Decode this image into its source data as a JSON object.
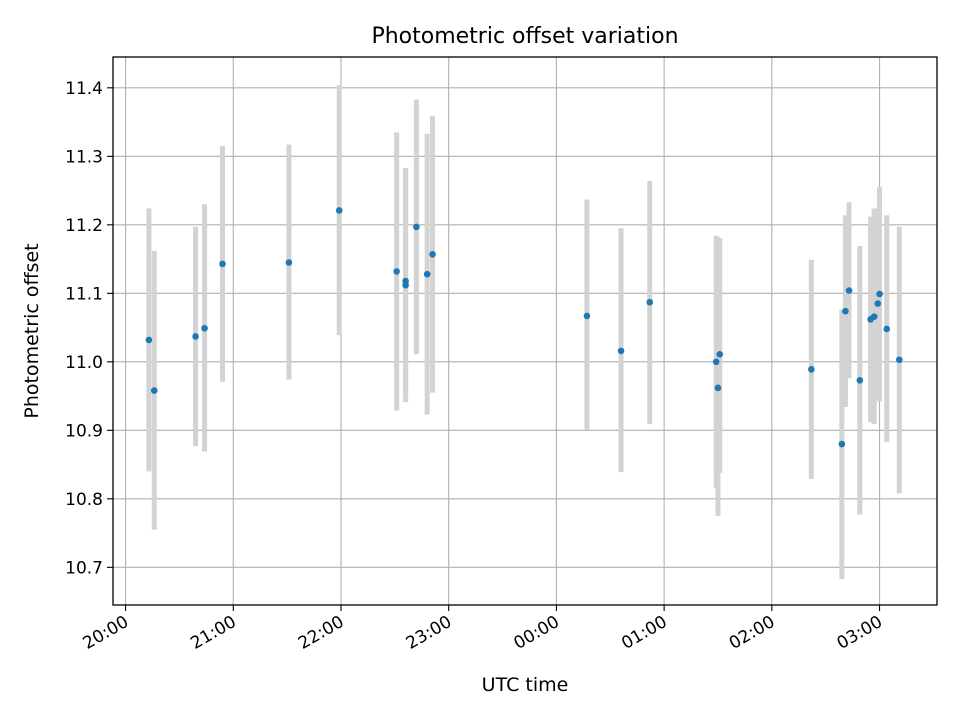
{
  "chart_data": {
    "type": "scatter",
    "title": "Photometric offset variation",
    "xlabel": "UTC time",
    "ylabel": "Photometric offset",
    "x_axis_kind": "time",
    "xlim": [
      "19:53",
      "03:32"
    ],
    "ylim": [
      10.645,
      11.445
    ],
    "xticks": [
      "20:00",
      "21:00",
      "22:00",
      "23:00",
      "00:00",
      "01:00",
      "02:00",
      "03:00"
    ],
    "yticks": [
      "10.7",
      "10.8",
      "10.9",
      "11.0",
      "11.1",
      "11.2",
      "11.3",
      "11.4"
    ],
    "grid": true,
    "colors": {
      "point": "#1f77b4",
      "errorbar": "#d3d3d3",
      "grid": "#b0b0b0"
    },
    "points": [
      {
        "x": "20:13",
        "y": 11.032,
        "yerr_low": 10.84,
        "yerr_high": 11.224
      },
      {
        "x": "20:16",
        "y": 10.958,
        "yerr_low": 10.755,
        "yerr_high": 11.162
      },
      {
        "x": "20:39",
        "y": 11.037,
        "yerr_low": 10.877,
        "yerr_high": 11.197
      },
      {
        "x": "20:44",
        "y": 11.049,
        "yerr_low": 10.869,
        "yerr_high": 11.23
      },
      {
        "x": "20:54",
        "y": 11.143,
        "yerr_low": 10.971,
        "yerr_high": 11.315
      },
      {
        "x": "21:31",
        "y": 11.145,
        "yerr_low": 10.974,
        "yerr_high": 11.317
      },
      {
        "x": "21:59",
        "y": 11.221,
        "yerr_low": 11.039,
        "yerr_high": 11.404
      },
      {
        "x": "22:31",
        "y": 11.132,
        "yerr_low": 10.929,
        "yerr_high": 11.335
      },
      {
        "x": "22:36",
        "y": 11.118,
        "yerr_low": 10.955,
        "yerr_high": 11.281
      },
      {
        "x": "22:36",
        "y": 11.112,
        "yerr_low": 10.941,
        "yerr_high": 11.283
      },
      {
        "x": "22:42",
        "y": 11.197,
        "yerr_low": 11.011,
        "yerr_high": 11.383
      },
      {
        "x": "22:48",
        "y": 11.128,
        "yerr_low": 10.923,
        "yerr_high": 11.333
      },
      {
        "x": "22:51",
        "y": 11.157,
        "yerr_low": 10.955,
        "yerr_high": 11.359
      },
      {
        "x": "00:17",
        "y": 11.067,
        "yerr_low": 10.901,
        "yerr_high": 11.237
      },
      {
        "x": "00:36",
        "y": 11.016,
        "yerr_low": 10.839,
        "yerr_high": 11.195
      },
      {
        "x": "00:52",
        "y": 11.087,
        "yerr_low": 10.909,
        "yerr_high": 11.264
      },
      {
        "x": "01:29",
        "y": 11.0,
        "yerr_low": 10.816,
        "yerr_high": 11.184
      },
      {
        "x": "01:30",
        "y": 10.962,
        "yerr_low": 10.775,
        "yerr_high": 11.182
      },
      {
        "x": "01:31",
        "y": 11.011,
        "yerr_low": 10.838,
        "yerr_high": 11.18
      },
      {
        "x": "02:22",
        "y": 10.989,
        "yerr_low": 10.829,
        "yerr_high": 11.149
      },
      {
        "x": "02:39",
        "y": 10.88,
        "yerr_low": 10.683,
        "yerr_high": 11.076
      },
      {
        "x": "02:41",
        "y": 11.074,
        "yerr_low": 10.934,
        "yerr_high": 11.214
      },
      {
        "x": "02:43",
        "y": 11.104,
        "yerr_low": 10.976,
        "yerr_high": 11.233
      },
      {
        "x": "02:49",
        "y": 10.973,
        "yerr_low": 10.777,
        "yerr_high": 11.169
      },
      {
        "x": "02:55",
        "y": 11.062,
        "yerr_low": 10.912,
        "yerr_high": 11.212
      },
      {
        "x": "02:57",
        "y": 11.066,
        "yerr_low": 10.909,
        "yerr_high": 11.224
      },
      {
        "x": "02:59",
        "y": 11.085,
        "yerr_low": 10.947,
        "yerr_high": 11.223
      },
      {
        "x": "03:00",
        "y": 11.099,
        "yerr_low": 10.942,
        "yerr_high": 11.255
      },
      {
        "x": "03:04",
        "y": 11.048,
        "yerr_low": 10.883,
        "yerr_high": 11.214
      },
      {
        "x": "03:11",
        "y": 11.003,
        "yerr_low": 10.808,
        "yerr_high": 11.197
      }
    ]
  }
}
